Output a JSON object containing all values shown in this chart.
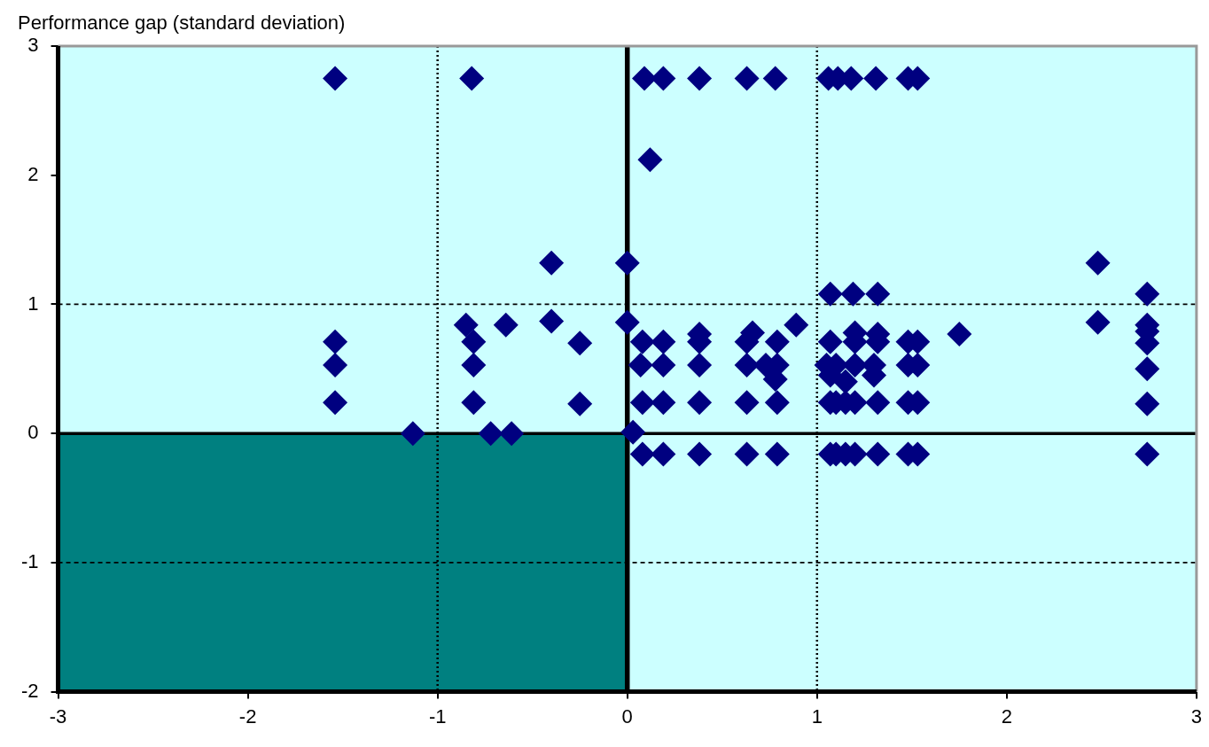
{
  "chart_data": {
    "type": "scatter",
    "ylabel": "Performance gap (standard deviation)",
    "x": [
      -1.54,
      -0.82,
      0.09,
      0.19,
      0.38,
      0.63,
      0.78,
      1.06,
      1.11,
      1.18,
      1.31,
      1.48,
      1.53,
      0.12,
      -0.4,
      0.0,
      2.48,
      1.07,
      1.19,
      1.32,
      2.74,
      -0.85,
      -0.64,
      -0.4,
      0.0,
      0.89,
      2.48,
      2.74,
      1.75,
      0.38,
      0.66,
      1.2,
      1.32,
      2.74,
      -1.54,
      -0.81,
      -0.25,
      0.08,
      0.19,
      0.38,
      0.63,
      0.79,
      1.07,
      1.2,
      1.32,
      1.48,
      1.53,
      2.74,
      -1.54,
      -0.81,
      0.07,
      0.19,
      0.38,
      0.63,
      0.73,
      0.79,
      1.05,
      1.1,
      1.2,
      1.3,
      1.48,
      1.53,
      2.74,
      0.78,
      1.07,
      1.15,
      1.3,
      -1.54,
      -0.81,
      -0.25,
      0.08,
      0.19,
      0.38,
      0.63,
      0.79,
      1.07,
      1.1,
      1.15,
      1.2,
      1.32,
      1.48,
      1.53,
      2.74,
      -1.13,
      -0.72,
      -0.61,
      0.03,
      0.08,
      0.19,
      0.38,
      0.63,
      0.79,
      1.07,
      1.1,
      1.15,
      1.2,
      1.32,
      1.48,
      1.53,
      2.74
    ],
    "series": [
      {
        "type": "area",
        "color": "#008080",
        "x": [
          -3,
          0
        ],
        "values": [
          -2,
          -2
        ]
      },
      {
        "color": "#000080",
        "marker": "diamond",
        "values": [
          2.75,
          2.75,
          2.75,
          2.75,
          2.75,
          2.75,
          2.75,
          2.75,
          2.75,
          2.75,
          2.75,
          2.75,
          2.75,
          2.12,
          1.32,
          1.32,
          1.32,
          1.08,
          1.08,
          1.08,
          1.08,
          0.84,
          0.84,
          0.87,
          0.86,
          0.84,
          0.86,
          0.84,
          0.77,
          0.77,
          0.78,
          0.78,
          0.77,
          0.79,
          0.71,
          0.71,
          0.7,
          0.71,
          0.71,
          0.71,
          0.71,
          0.71,
          0.71,
          0.71,
          0.71,
          0.71,
          0.71,
          0.7,
          0.53,
          0.53,
          0.53,
          0.53,
          0.53,
          0.53,
          0.53,
          0.53,
          0.53,
          0.53,
          0.53,
          0.53,
          0.53,
          0.53,
          0.5,
          0.42,
          0.45,
          0.4,
          0.45,
          0.24,
          0.24,
          0.23,
          0.24,
          0.24,
          0.24,
          0.24,
          0.24,
          0.24,
          0.24,
          0.24,
          0.24,
          0.24,
          0.24,
          0.24,
          0.23,
          0.0,
          0.0,
          0.0,
          0.01,
          -0.16,
          -0.16,
          -0.16,
          -0.16,
          -0.16,
          -0.16,
          -0.16,
          -0.16,
          -0.16,
          -0.16,
          -0.16,
          -0.16,
          -0.16
        ]
      }
    ],
    "xlim": [
      -3,
      3
    ],
    "ylim": [
      -2,
      3
    ],
    "xticks": [
      -3,
      -2,
      -1,
      0,
      1,
      2,
      3
    ],
    "yticks": [
      -2,
      -1,
      0,
      1,
      2,
      3
    ],
    "ref_lines": [
      {
        "axis": "x",
        "value": 0,
        "color": "#000000",
        "line_style": "solid"
      },
      {
        "axis": "y",
        "value": 0,
        "color": "#000000",
        "line_style": "solid"
      },
      {
        "axis": "x",
        "value": -1,
        "color": "#000000",
        "line_style": "dotted"
      },
      {
        "axis": "x",
        "value": 1,
        "color": "#000000",
        "line_style": "dotted"
      },
      {
        "axis": "y",
        "value": -1,
        "color": "#000000",
        "line_style": "dashed"
      },
      {
        "axis": "y",
        "value": 1,
        "color": "#000000",
        "line_style": "dashed"
      }
    ],
    "grid": false
  }
}
